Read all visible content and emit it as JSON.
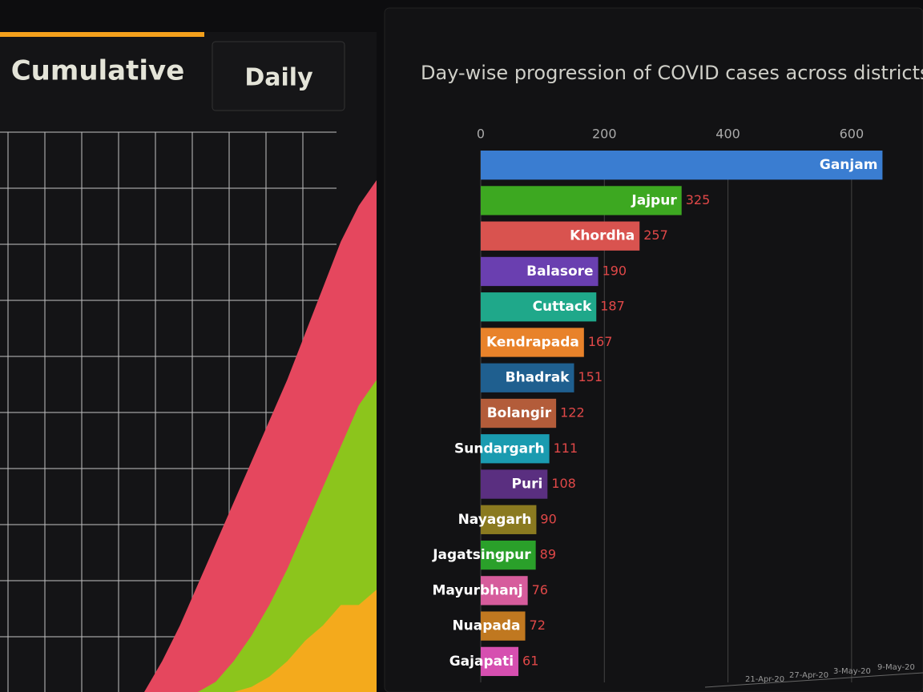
{
  "tabs": [
    "Cumulative",
    "Daily"
  ],
  "area_chart": {
    "type": "area",
    "ylim": [
      0,
      100
    ],
    "series": [
      {
        "color": "#e5475e",
        "values": [
          0,
          6,
          13,
          21,
          29,
          37,
          45,
          53,
          61,
          70,
          79,
          88,
          95,
          100
        ]
      },
      {
        "color": "#8cc51c",
        "values": [
          0,
          0,
          0,
          0,
          2,
          6,
          11,
          17,
          24,
          32,
          40,
          48,
          56,
          61
        ]
      },
      {
        "color": "#f4aa1c",
        "values": [
          0,
          0,
          0,
          0,
          0,
          0,
          1,
          3,
          6,
          10,
          13,
          17,
          17,
          20
        ]
      }
    ]
  },
  "chart_data": {
    "type": "bar",
    "title": "Day-wise progression of COVID cases across districts",
    "categories": [
      "Ganjam",
      "Jajpur",
      "Khordha",
      "Balasore",
      "Cuttack",
      "Kendrapada",
      "Bhadrak",
      "Bolangir",
      "Sundargarh",
      "Puri",
      "Nayagarh",
      "Jagatsingpur",
      "Mayurbhanj",
      "Nuapada",
      "Gajapati"
    ],
    "values": [
      650,
      325,
      257,
      190,
      187,
      167,
      151,
      122,
      111,
      108,
      90,
      89,
      76,
      72,
      61
    ],
    "value_labels": [
      null,
      325,
      257,
      190,
      187,
      167,
      151,
      122,
      111,
      108,
      90,
      89,
      76,
      72,
      61
    ],
    "colors": [
      "#3a7dd1",
      "#3da821",
      "#d9534f",
      "#6a3fb0",
      "#1fa88a",
      "#e8822a",
      "#1f5f8f",
      "#b35c3a",
      "#1a9bb0",
      "#5a2f80",
      "#8a7a20",
      "#2aa02a",
      "#d65c9c",
      "#c07820",
      "#d64fb0"
    ],
    "xlim": [
      0,
      700
    ],
    "xticks": [
      0,
      200,
      400,
      600
    ],
    "grid": true
  },
  "timeline": [
    "21-Apr-20",
    "27-Apr-20",
    "3-May-20",
    "9-May-20"
  ]
}
